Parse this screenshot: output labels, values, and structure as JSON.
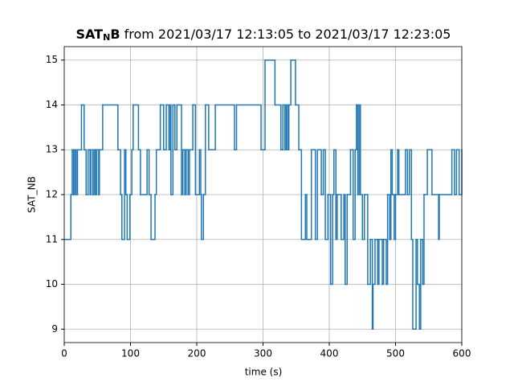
{
  "chart_data": {
    "type": "step",
    "title_parts": [
      "SAT",
      "N",
      "B",
      " from 2021/03/17 12:13:05 to 2021/03/17 12:23:05"
    ],
    "xlabel": "time (s)",
    "ylabel": "SAT_NB",
    "xlim": [
      0,
      600
    ],
    "ylim": [
      8.7,
      15.3
    ],
    "xticks": [
      0,
      100,
      200,
      300,
      400,
      500,
      600
    ],
    "yticks": [
      9,
      10,
      11,
      12,
      13,
      14,
      15
    ],
    "grid": true,
    "series": [
      {
        "color": "#1f77b4",
        "x": [
          0,
          10,
          12,
          14,
          16,
          18,
          20,
          26,
          30,
          33,
          36,
          39,
          40,
          43,
          45,
          47,
          49,
          52,
          53,
          58,
          81,
          85,
          87,
          91,
          93,
          95,
          99,
          102,
          104,
          112,
          115,
          125,
          128,
          131,
          137,
          139,
          145,
          150,
          154,
          158,
          160,
          161,
          164,
          167,
          170,
          177,
          179,
          182,
          184,
          187,
          189,
          194,
          198,
          204,
          206,
          207,
          210,
          213,
          218,
          228,
          257,
          260,
          297,
          303,
          318,
          327,
          330,
          333,
          335,
          337,
          339,
          342,
          349,
          354,
          358,
          364,
          366,
          373,
          379,
          382,
          388,
          391,
          394,
          398,
          402,
          405,
          407,
          410,
          412,
          418,
          422,
          424,
          427,
          432,
          436,
          439,
          441,
          443,
          445,
          447,
          450,
          453,
          458,
          462,
          465,
          466,
          469,
          473,
          475,
          480,
          482,
          486,
          488,
          491,
          493,
          495,
          498,
          500,
          503,
          505,
          515,
          518,
          521,
          524,
          526,
          531,
          533,
          536,
          538,
          541,
          543,
          548,
          555,
          565,
          566,
          585,
          589,
          592,
          596,
          600
        ],
        "values": [
          11,
          12,
          13,
          12,
          13,
          12,
          13,
          14,
          13,
          12,
          13,
          12,
          13,
          12,
          13,
          12,
          13,
          12,
          13,
          14,
          13,
          12,
          11,
          13,
          12,
          11,
          12,
          13,
          14,
          13,
          12,
          13,
          12,
          11,
          12,
          13,
          14,
          13,
          14,
          13,
          14,
          12,
          14,
          13,
          14,
          12,
          13,
          12,
          13,
          12,
          13,
          14,
          12,
          13,
          12,
          11,
          12,
          14,
          13,
          14,
          13,
          14,
          13,
          15,
          14,
          13,
          14,
          13,
          14,
          13,
          14,
          15,
          14,
          13,
          11,
          12,
          11,
          13,
          11,
          13,
          12,
          13,
          11,
          12,
          10,
          12,
          13,
          11,
          12,
          11,
          12,
          10,
          12,
          13,
          11,
          13,
          14,
          12,
          14,
          12,
          11,
          12,
          10,
          11,
          9,
          10,
          11,
          10,
          11,
          10,
          11,
          10,
          12,
          11,
          13,
          12,
          11,
          12,
          13,
          12,
          13,
          12,
          13,
          11,
          9,
          11,
          10,
          9,
          11,
          10,
          12,
          13,
          12,
          11,
          12,
          13,
          12,
          13,
          12,
          13
        ]
      }
    ]
  }
}
